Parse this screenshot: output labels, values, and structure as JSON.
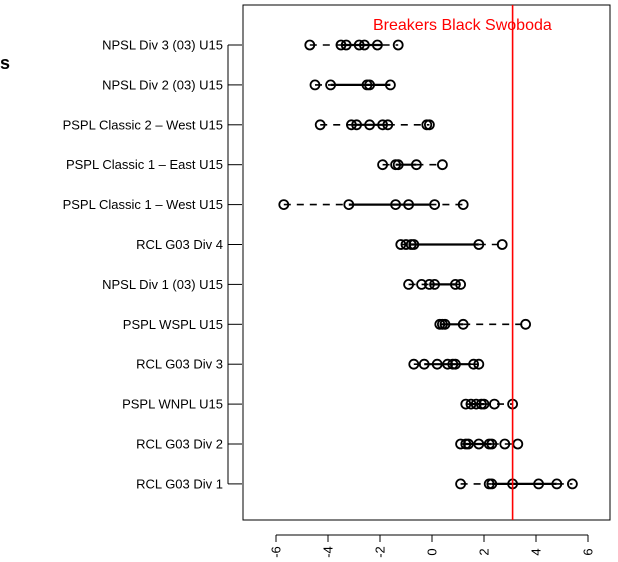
{
  "chart_data": {
    "type": "boxplot",
    "orientation": "horizontal",
    "title": "",
    "xlabel": "",
    "ylabel": "",
    "xlim": [
      -6.5,
      6.5
    ],
    "x_ticks": [
      -6,
      -4,
      -2,
      0,
      2,
      4,
      6
    ],
    "x_tick_labels": [
      "-6",
      "-4",
      "-2",
      "0",
      "2",
      "4",
      "6"
    ],
    "reference_line": {
      "label": "Breakers Black Swoboda",
      "value": 3.1,
      "color": "#ff0000"
    },
    "stray_text": "s",
    "categories": [
      "NPSL Div 3 (03) U15",
      "NPSL Div 2 (03) U15",
      "PSPL Classic 2 – West U15",
      "PSPL Classic 1 – East U15",
      "PSPL Classic 1 – West U15",
      "RCL G03 Div 4",
      "NPSL Div 1 (03) U15",
      "PSPL WSPL U15",
      "RCL G03 Div 3",
      "PSPL WNPL U15",
      "RCL G03 Div 2",
      "RCL G03 Div 1"
    ],
    "groups": [
      {
        "label": "NPSL Div 3 (03) U15",
        "box": [
          -3.5,
          -1.9
        ],
        "whiskers": [
          -4.7,
          -1.3
        ],
        "points": [
          -4.7,
          -3.5,
          -3.3,
          -2.8,
          -2.6,
          -2.1,
          -1.3
        ]
      },
      {
        "label": "NPSL Div 2 (03) U15",
        "box": [
          -3.9,
          -1.6
        ],
        "whiskers": [
          -4.5,
          -1.6
        ],
        "points": [
          -4.5,
          -3.9,
          -2.5,
          -2.4,
          -1.6
        ]
      },
      {
        "label": "PSPL Classic 2 – West U15",
        "box": [
          -3.1,
          -1.7
        ],
        "whiskers": [
          -4.3,
          -0.1
        ],
        "points": [
          -4.3,
          -3.1,
          -2.9,
          -2.4,
          -1.9,
          -1.7,
          -0.2,
          -0.1
        ]
      },
      {
        "label": "PSPL Classic 1 – East U15",
        "box": [
          -1.4,
          -0.6
        ],
        "whiskers": [
          -1.9,
          0.4
        ],
        "points": [
          -1.9,
          -1.4,
          -1.3,
          -0.6,
          0.4
        ]
      },
      {
        "label": "PSPL Classic 1 – West U15",
        "box": [
          -3.2,
          -0.1
        ],
        "whiskers": [
          -5.7,
          1.2
        ],
        "points": [
          -5.7,
          -3.2,
          -1.4,
          -0.9,
          0.1,
          1.2
        ]
      },
      {
        "label": "RCL G03 Div 4",
        "box": [
          -0.8,
          1.8
        ],
        "whiskers": [
          -1.2,
          2.7
        ],
        "points": [
          -1.2,
          -1.0,
          -0.8,
          -0.7,
          1.8,
          2.7
        ]
      },
      {
        "label": "NPSL Div 1 (03) U15",
        "box": [
          -0.1,
          0.9
        ],
        "whiskers": [
          -0.9,
          1.1
        ],
        "points": [
          -0.9,
          -0.4,
          -0.1,
          0.1,
          0.9,
          1.1
        ]
      },
      {
        "label": "PSPL WSPL U15",
        "box": [
          0.3,
          1.2
        ],
        "whiskers": [
          0.3,
          3.6
        ],
        "points": [
          0.3,
          0.4,
          0.5,
          1.2,
          3.6
        ]
      },
      {
        "label": "RCL G03 Div 3",
        "box": [
          -0.3,
          1.5
        ],
        "whiskers": [
          -0.7,
          1.8
        ],
        "points": [
          -0.7,
          -0.3,
          0.2,
          0.6,
          0.8,
          0.9,
          1.6,
          1.8
        ]
      },
      {
        "label": "PSPL WNPL U15",
        "box": [
          1.5,
          2.0
        ],
        "whiskers": [
          1.3,
          3.1
        ],
        "points": [
          1.3,
          1.5,
          1.7,
          1.9,
          2.0,
          2.4,
          3.1
        ]
      },
      {
        "label": "RCL G03 Div 2",
        "box": [
          1.3,
          2.3
        ],
        "whiskers": [
          1.1,
          3.3
        ],
        "points": [
          1.1,
          1.3,
          1.4,
          1.8,
          2.2,
          2.3,
          2.8,
          3.3
        ]
      },
      {
        "label": "RCL G03 Div 1",
        "box": [
          2.3,
          4.8
        ],
        "whiskers": [
          1.1,
          5.4
        ],
        "points": [
          1.1,
          2.2,
          2.3,
          3.1,
          4.1,
          4.8,
          5.4
        ]
      }
    ]
  }
}
